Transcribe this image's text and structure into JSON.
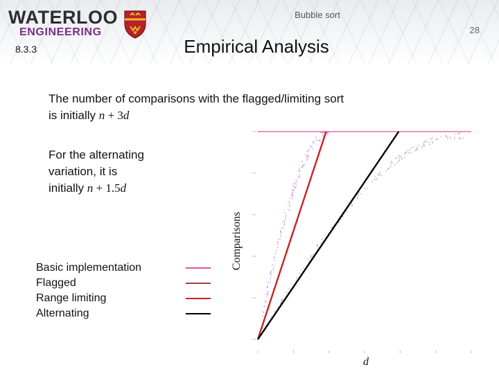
{
  "header": {
    "logo_line1": "WATERLOO",
    "logo_line2": "ENGINEERING",
    "crest": "crest-icon",
    "deck_title": "Bubble sort",
    "page_number": "28"
  },
  "section_number": "8.3.3",
  "title": "Empirical Analysis",
  "body": {
    "line1_text": "The number of comparisons with the flagged/limiting sort",
    "line2_prefix": "is initially ",
    "line2_var_n": "n",
    "line2_op": " + 3",
    "line2_var_d": "d",
    "alt_line1": "For the alternating",
    "alt_line2": "variation, it is",
    "alt_line3_prefix": "initially ",
    "alt_var_n": "n",
    "alt_op": " + 1.5",
    "alt_var_d": "d"
  },
  "legend": [
    {
      "label": "Basic implementation",
      "color": "#e0509c"
    },
    {
      "label": "Flagged",
      "color": "#a04040"
    },
    {
      "label": "Range limiting",
      "color": "#cc2020"
    },
    {
      "label": "Alternating",
      "color": "#000000"
    }
  ],
  "chart_data": {
    "type": "scatter",
    "xlabel": "d",
    "ylabel": "Comparisons",
    "series": [
      {
        "name": "Basic implementation",
        "color": "#e0509c"
      },
      {
        "name": "Flagged",
        "color": "#a04040"
      },
      {
        "name": "Range limiting",
        "color": "#cc2020"
      },
      {
        "name": "Alternating",
        "color": "#000000"
      }
    ],
    "normalized_lines": {
      "basic_level": 1.0,
      "flagged_linear": [
        [
          0,
          0.0
        ],
        [
          0.32,
          1.0
        ]
      ],
      "alternating_linear": [
        [
          0,
          0.0
        ],
        [
          0.66,
          1.0
        ]
      ]
    }
  }
}
